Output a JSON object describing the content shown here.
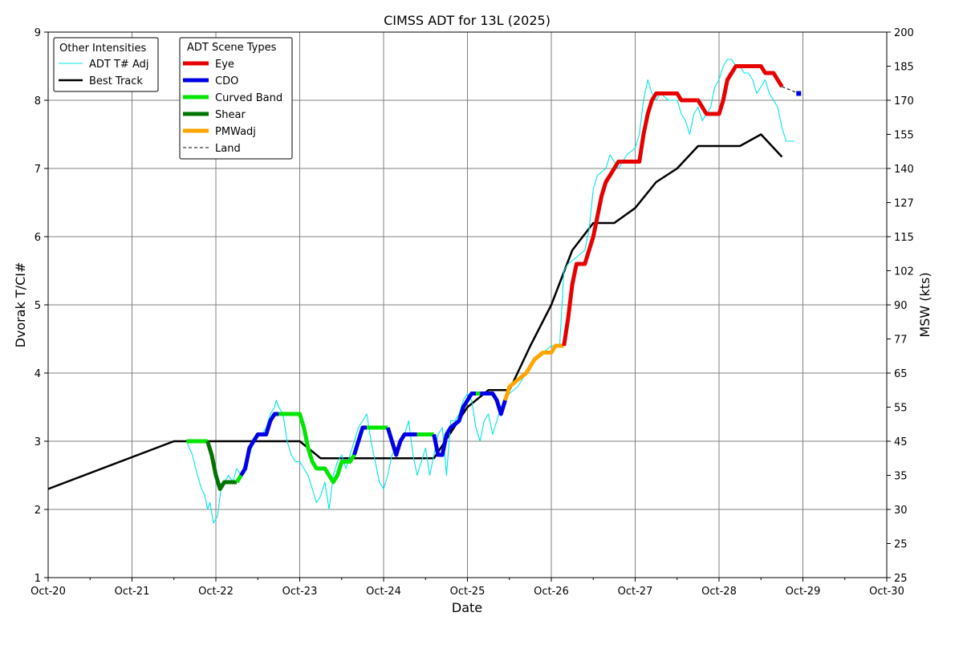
{
  "chart_data": {
    "type": "line",
    "title": "CIMSS ADT for 13L (2025)",
    "xlabel": "Date",
    "ylabel": "Dvorak T/CI#",
    "y2label": "MSW (kts)",
    "xlim": [
      0,
      10
    ],
    "ylim": [
      1,
      9
    ],
    "x_ticks": [
      "Oct-20",
      "Oct-21",
      "Oct-22",
      "Oct-23",
      "Oct-24",
      "Oct-25",
      "Oct-26",
      "Oct-27",
      "Oct-28",
      "Oct-29",
      "Oct-30"
    ],
    "x_tick_values": [
      0,
      1,
      2,
      3,
      4,
      5,
      6,
      7,
      8,
      9,
      10
    ],
    "y_ticks": [
      "1",
      "2",
      "3",
      "4",
      "5",
      "6",
      "7",
      "8",
      "9"
    ],
    "y_tick_values": [
      1,
      2,
      3,
      4,
      5,
      6,
      7,
      8,
      9
    ],
    "y2_ticks": [
      "25",
      "25",
      "30",
      "35",
      "45",
      "55",
      "65",
      "77",
      "90",
      "102",
      "115",
      "127",
      "140",
      "155",
      "170",
      "185",
      "200"
    ],
    "y2_tick_values": [
      1,
      1.5,
      2,
      2.5,
      3,
      3.5,
      4,
      4.5,
      5,
      5.5,
      6,
      6.5,
      7,
      7.5,
      8,
      8.5,
      9
    ],
    "grid": true,
    "x_unit": "days since Oct-20 00Z",
    "legend_other": {
      "title": "Other Intensities",
      "items": [
        {
          "label": "ADT T# Adj",
          "color": "#00e5e5",
          "width": 1
        },
        {
          "label": "Best Track",
          "color": "#000000",
          "width": 2.5
        }
      ]
    },
    "legend_scene": {
      "title": "ADT Scene Types",
      "items": [
        {
          "label": "Eye",
          "color": "#e60000",
          "dash": false
        },
        {
          "label": "CDO",
          "color": "#0000e6",
          "dash": false
        },
        {
          "label": "Curved Band",
          "color": "#00e600",
          "dash": false
        },
        {
          "label": "Shear",
          "color": "#007300",
          "dash": false
        },
        {
          "label": "PMWadj",
          "color": "#ffa500",
          "dash": false
        },
        {
          "label": "Land",
          "color": "#000000",
          "dash": true
        }
      ]
    },
    "best_track": {
      "name": "Best Track",
      "color": "#000000",
      "points": [
        [
          0,
          2.3
        ],
        [
          1.5,
          3.0
        ],
        [
          3.0,
          3.0
        ],
        [
          3.25,
          2.75
        ],
        [
          4.5,
          2.75
        ],
        [
          4.6,
          2.75
        ],
        [
          5.0,
          3.5
        ],
        [
          5.25,
          3.75
        ],
        [
          5.5,
          3.75
        ],
        [
          5.75,
          4.4
        ],
        [
          6.0,
          5.0
        ],
        [
          6.25,
          5.8
        ],
        [
          6.5,
          6.2
        ],
        [
          6.75,
          6.2
        ],
        [
          7.0,
          6.42
        ],
        [
          7.25,
          6.8
        ],
        [
          7.5,
          7.0
        ],
        [
          7.75,
          7.33
        ],
        [
          8.0,
          7.33
        ],
        [
          8.25,
          7.33
        ],
        [
          8.5,
          7.5
        ],
        [
          8.75,
          7.17
        ]
      ]
    },
    "adt_adj": {
      "name": "ADT T# Adj",
      "color": "#00e5e5",
      "points": [
        [
          1.65,
          3.0
        ],
        [
          1.72,
          2.8
        ],
        [
          1.78,
          2.5
        ],
        [
          1.83,
          2.3
        ],
        [
          1.87,
          2.2
        ],
        [
          1.9,
          2.0
        ],
        [
          1.93,
          2.1
        ],
        [
          1.97,
          1.8
        ],
        [
          2.02,
          1.9
        ],
        [
          2.06,
          2.3
        ],
        [
          2.1,
          2.4
        ],
        [
          2.15,
          2.5
        ],
        [
          2.2,
          2.4
        ],
        [
          2.25,
          2.6
        ],
        [
          2.3,
          2.5
        ],
        [
          2.35,
          2.7
        ],
        [
          2.4,
          2.8
        ],
        [
          2.45,
          3.0
        ],
        [
          2.5,
          3.1
        ],
        [
          2.55,
          3.1
        ],
        [
          2.6,
          3.2
        ],
        [
          2.65,
          3.4
        ],
        [
          2.7,
          3.5
        ],
        [
          2.72,
          3.6
        ],
        [
          2.75,
          3.5
        ],
        [
          2.8,
          3.4
        ],
        [
          2.85,
          3.0
        ],
        [
          2.9,
          2.8
        ],
        [
          2.95,
          2.7
        ],
        [
          3.0,
          2.7
        ],
        [
          3.05,
          2.6
        ],
        [
          3.1,
          2.5
        ],
        [
          3.15,
          2.3
        ],
        [
          3.2,
          2.1
        ],
        [
          3.25,
          2.2
        ],
        [
          3.3,
          2.4
        ],
        [
          3.35,
          2.0
        ],
        [
          3.4,
          2.5
        ],
        [
          3.45,
          2.7
        ],
        [
          3.5,
          2.8
        ],
        [
          3.55,
          2.6
        ],
        [
          3.6,
          2.8
        ],
        [
          3.65,
          3.0
        ],
        [
          3.7,
          3.2
        ],
        [
          3.75,
          3.3
        ],
        [
          3.8,
          3.4
        ],
        [
          3.85,
          3.0
        ],
        [
          3.9,
          2.7
        ],
        [
          3.95,
          2.4
        ],
        [
          4.0,
          2.3
        ],
        [
          4.05,
          2.5
        ],
        [
          4.1,
          2.8
        ],
        [
          4.15,
          2.9
        ],
        [
          4.2,
          3.0
        ],
        [
          4.25,
          3.1
        ],
        [
          4.3,
          3.3
        ],
        [
          4.35,
          2.8
        ],
        [
          4.4,
          2.5
        ],
        [
          4.45,
          2.7
        ],
        [
          4.5,
          2.9
        ],
        [
          4.55,
          2.5
        ],
        [
          4.6,
          2.8
        ],
        [
          4.65,
          3.1
        ],
        [
          4.7,
          3.2
        ],
        [
          4.75,
          2.5
        ],
        [
          4.8,
          3.3
        ],
        [
          4.85,
          3.3
        ],
        [
          4.9,
          3.4
        ],
        [
          4.95,
          3.6
        ],
        [
          5.0,
          3.7
        ],
        [
          5.05,
          3.6
        ],
        [
          5.1,
          3.2
        ],
        [
          5.15,
          3.0
        ],
        [
          5.2,
          3.3
        ],
        [
          5.25,
          3.4
        ],
        [
          5.3,
          3.1
        ],
        [
          5.35,
          3.3
        ],
        [
          5.4,
          3.5
        ],
        [
          5.45,
          3.6
        ],
        [
          5.5,
          3.7
        ],
        [
          5.6,
          3.8
        ],
        [
          5.7,
          4.0
        ],
        [
          5.8,
          4.2
        ],
        [
          5.9,
          4.3
        ],
        [
          6.0,
          4.4
        ],
        [
          6.1,
          4.4
        ],
        [
          6.15,
          5.5
        ],
        [
          6.2,
          5.6
        ],
        [
          6.3,
          5.7
        ],
        [
          6.4,
          5.8
        ],
        [
          6.45,
          6.1
        ],
        [
          6.5,
          6.7
        ],
        [
          6.55,
          6.9
        ],
        [
          6.65,
          7.0
        ],
        [
          6.7,
          7.2
        ],
        [
          6.8,
          7.0
        ],
        [
          6.9,
          7.2
        ],
        [
          7.0,
          7.3
        ],
        [
          7.05,
          7.5
        ],
        [
          7.1,
          8.0
        ],
        [
          7.15,
          8.3
        ],
        [
          7.2,
          8.1
        ],
        [
          7.25,
          8.0
        ],
        [
          7.3,
          8.1
        ],
        [
          7.4,
          8.0
        ],
        [
          7.5,
          8.0
        ],
        [
          7.55,
          7.8
        ],
        [
          7.6,
          7.7
        ],
        [
          7.65,
          7.5
        ],
        [
          7.7,
          7.8
        ],
        [
          7.75,
          7.9
        ],
        [
          7.8,
          7.7
        ],
        [
          7.85,
          7.8
        ],
        [
          7.9,
          7.9
        ],
        [
          7.95,
          8.2
        ],
        [
          8.0,
          8.3
        ],
        [
          8.05,
          8.5
        ],
        [
          8.1,
          8.6
        ],
        [
          8.15,
          8.6
        ],
        [
          8.2,
          8.5
        ],
        [
          8.25,
          8.5
        ],
        [
          8.3,
          8.4
        ],
        [
          8.35,
          8.4
        ],
        [
          8.4,
          8.3
        ],
        [
          8.45,
          8.1
        ],
        [
          8.5,
          8.2
        ],
        [
          8.55,
          8.3
        ],
        [
          8.6,
          8.1
        ],
        [
          8.65,
          8.0
        ],
        [
          8.7,
          7.9
        ],
        [
          8.75,
          7.6
        ],
        [
          8.8,
          7.4
        ],
        [
          8.9,
          7.4
        ]
      ]
    },
    "scene_segments": [
      {
        "type": "Curved Band",
        "color": "#00e600",
        "points": [
          [
            1.65,
            3.0
          ],
          [
            1.9,
            3.0
          ]
        ]
      },
      {
        "type": "Shear",
        "color": "#007300",
        "points": [
          [
            1.9,
            3.0
          ],
          [
            1.95,
            2.8
          ],
          [
            2.0,
            2.5
          ],
          [
            2.05,
            2.3
          ],
          [
            2.1,
            2.4
          ],
          [
            2.25,
            2.4
          ]
        ]
      },
      {
        "type": "Curved Band",
        "color": "#00e600",
        "points": [
          [
            2.25,
            2.4
          ],
          [
            2.3,
            2.5
          ]
        ]
      },
      {
        "type": "CDO",
        "color": "#0000e6",
        "points": [
          [
            2.3,
            2.5
          ],
          [
            2.35,
            2.6
          ],
          [
            2.4,
            2.9
          ],
          [
            2.45,
            3.0
          ],
          [
            2.5,
            3.1
          ],
          [
            2.6,
            3.1
          ],
          [
            2.65,
            3.3
          ],
          [
            2.7,
            3.4
          ],
          [
            2.75,
            3.4
          ]
        ]
      },
      {
        "type": "Curved Band",
        "color": "#00e600",
        "points": [
          [
            2.75,
            3.4
          ],
          [
            3.0,
            3.4
          ],
          [
            3.05,
            3.2
          ],
          [
            3.1,
            2.9
          ],
          [
            3.15,
            2.7
          ],
          [
            3.2,
            2.6
          ],
          [
            3.3,
            2.6
          ],
          [
            3.35,
            2.5
          ],
          [
            3.4,
            2.4
          ],
          [
            3.45,
            2.5
          ],
          [
            3.5,
            2.7
          ],
          [
            3.6,
            2.7
          ],
          [
            3.65,
            2.8
          ]
        ]
      },
      {
        "type": "CDO",
        "color": "#0000e6",
        "points": [
          [
            3.65,
            2.8
          ],
          [
            3.7,
            3.0
          ],
          [
            3.75,
            3.2
          ],
          [
            3.8,
            3.2
          ]
        ]
      },
      {
        "type": "Curved Band",
        "color": "#00e600",
        "points": [
          [
            3.8,
            3.2
          ],
          [
            4.05,
            3.2
          ]
        ]
      },
      {
        "type": "CDO",
        "color": "#0000e6",
        "points": [
          [
            4.05,
            3.2
          ],
          [
            4.1,
            3.0
          ],
          [
            4.15,
            2.8
          ],
          [
            4.2,
            3.0
          ],
          [
            4.25,
            3.1
          ],
          [
            4.4,
            3.1
          ]
        ]
      },
      {
        "type": "Curved Band",
        "color": "#00e600",
        "points": [
          [
            4.4,
            3.1
          ],
          [
            4.6,
            3.1
          ]
        ]
      },
      {
        "type": "CDO",
        "color": "#0000e6",
        "points": [
          [
            4.6,
            3.1
          ],
          [
            4.65,
            2.8
          ],
          [
            4.7,
            2.8
          ],
          [
            4.75,
            3.1
          ],
          [
            4.8,
            3.2
          ],
          [
            4.9,
            3.3
          ],
          [
            4.95,
            3.5
          ],
          [
            5.0,
            3.6
          ],
          [
            5.05,
            3.7
          ],
          [
            5.1,
            3.7
          ]
        ]
      },
      {
        "type": "Curved Band",
        "color": "#00e600",
        "points": [
          [
            5.1,
            3.7
          ],
          [
            5.15,
            3.7
          ]
        ]
      },
      {
        "type": "CDO",
        "color": "#0000e6",
        "points": [
          [
            5.15,
            3.7
          ],
          [
            5.3,
            3.7
          ],
          [
            5.35,
            3.6
          ],
          [
            5.4,
            3.4
          ],
          [
            5.45,
            3.6
          ]
        ]
      },
      {
        "type": "PMWadj",
        "color": "#ffa500",
        "points": [
          [
            5.45,
            3.6
          ],
          [
            5.5,
            3.8
          ],
          [
            5.6,
            3.9
          ],
          [
            5.7,
            4.0
          ],
          [
            5.75,
            4.1
          ],
          [
            5.8,
            4.2
          ],
          [
            5.9,
            4.3
          ],
          [
            6.0,
            4.3
          ],
          [
            6.05,
            4.4
          ],
          [
            6.15,
            4.4
          ]
        ]
      },
      {
        "type": "Eye",
        "color": "#e60000",
        "points": [
          [
            6.15,
            4.4
          ],
          [
            6.2,
            4.8
          ],
          [
            6.25,
            5.3
          ],
          [
            6.3,
            5.6
          ],
          [
            6.4,
            5.6
          ],
          [
            6.45,
            5.8
          ],
          [
            6.5,
            6.0
          ],
          [
            6.55,
            6.3
          ],
          [
            6.6,
            6.6
          ],
          [
            6.65,
            6.8
          ],
          [
            6.7,
            6.9
          ],
          [
            6.75,
            7.0
          ],
          [
            6.8,
            7.1
          ],
          [
            7.05,
            7.1
          ],
          [
            7.1,
            7.5
          ],
          [
            7.15,
            7.8
          ],
          [
            7.2,
            8.0
          ],
          [
            7.25,
            8.1
          ],
          [
            7.5,
            8.1
          ],
          [
            7.55,
            8.0
          ],
          [
            7.75,
            8.0
          ],
          [
            7.8,
            7.9
          ],
          [
            7.85,
            7.8
          ],
          [
            8.0,
            7.8
          ],
          [
            8.05,
            8.0
          ],
          [
            8.1,
            8.3
          ],
          [
            8.15,
            8.4
          ],
          [
            8.2,
            8.5
          ],
          [
            8.5,
            8.5
          ],
          [
            8.55,
            8.4
          ],
          [
            8.65,
            8.4
          ],
          [
            8.7,
            8.3
          ],
          [
            8.75,
            8.2
          ]
        ]
      },
      {
        "type": "Land",
        "color": "#000000",
        "dashed": true,
        "points": [
          [
            8.75,
            8.2
          ],
          [
            8.95,
            8.1
          ]
        ]
      }
    ]
  }
}
